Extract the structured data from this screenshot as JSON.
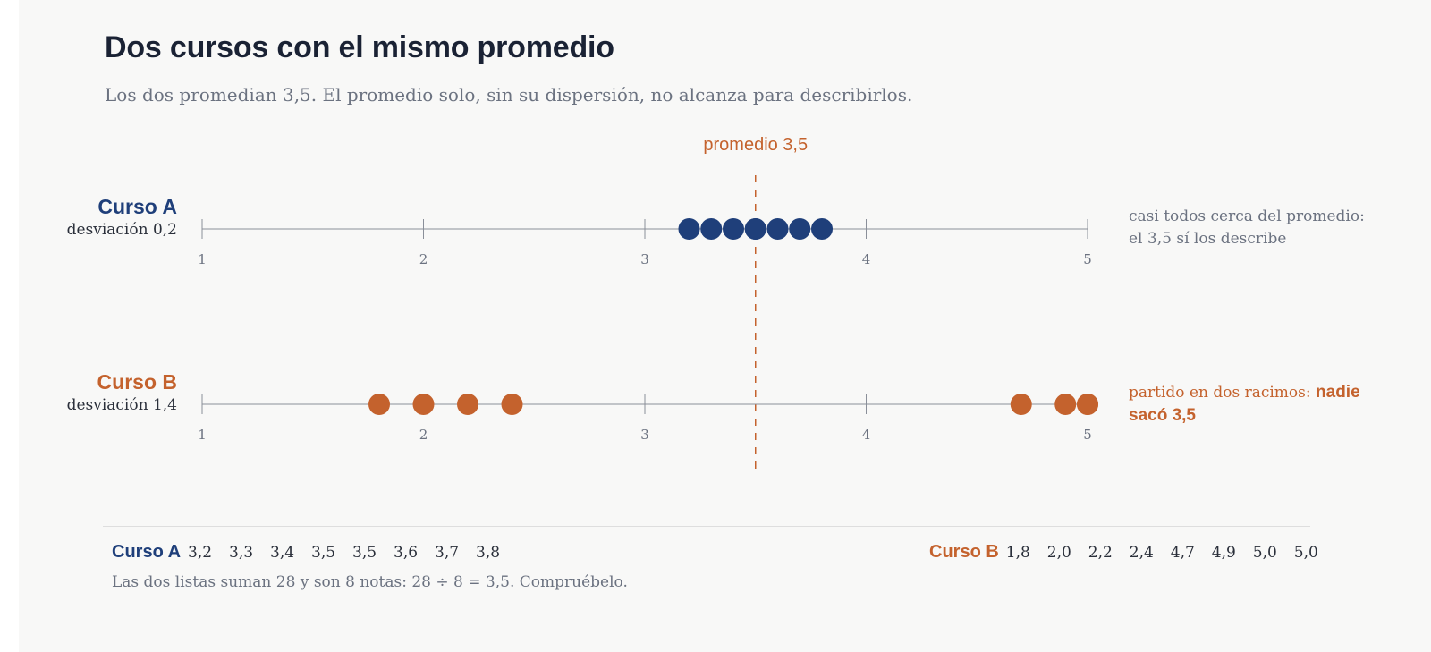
{
  "title": "Dos cursos con el mismo promedio",
  "subtitle": "Los dos promedian 3,5. El promedio solo, sin su dispersión, no alcanza para describirlos.",
  "colors": {
    "course_a": "#1f3f7a",
    "course_b": "#c4622d",
    "axis": "#8a8f99",
    "mean": "#c4622d"
  },
  "chart_data": {
    "type": "scatter",
    "title": "Dos cursos con el mismo promedio",
    "subtitle": "Los dos promedian 3,5. El promedio solo, sin su dispersión, no alcanza para describirlos.",
    "xlim": [
      1,
      5
    ],
    "ticks": [
      "1",
      "2",
      "3",
      "4",
      "5"
    ],
    "mean": {
      "value": 3.5,
      "label": "promedio 3,5"
    },
    "series": [
      {
        "name": "Curso A",
        "subtitle": "desviación 0,2",
        "color": "#1f3f7a",
        "values": [
          3.2,
          3.3,
          3.4,
          3.5,
          3.5,
          3.6,
          3.7,
          3.8
        ],
        "note": "casi todos cerca del promedio: el 3,5 sí los describe"
      },
      {
        "name": "Curso B",
        "subtitle": "desviación 1,4",
        "color": "#c4622d",
        "values": [
          1.8,
          2.0,
          2.2,
          2.4,
          4.7,
          4.9,
          5.0,
          5.0
        ],
        "note": "partido en dos racimos:",
        "note_emph": "nadie sacó 3,5"
      }
    ]
  },
  "lists": {
    "a": {
      "name": "Curso A",
      "grades": [
        "3,2",
        "3,3",
        "3,4",
        "3,5",
        "3,5",
        "3,6",
        "3,7",
        "3,8"
      ]
    },
    "b": {
      "name": "Curso B",
      "grades": [
        "1,8",
        "2,0",
        "2,2",
        "2,4",
        "4,7",
        "4,9",
        "5,0",
        "5,0"
      ]
    }
  },
  "footnote": "Las dos listas suman 28 y son 8 notas: 28 ÷ 8 = 3,5. Compruébelo."
}
